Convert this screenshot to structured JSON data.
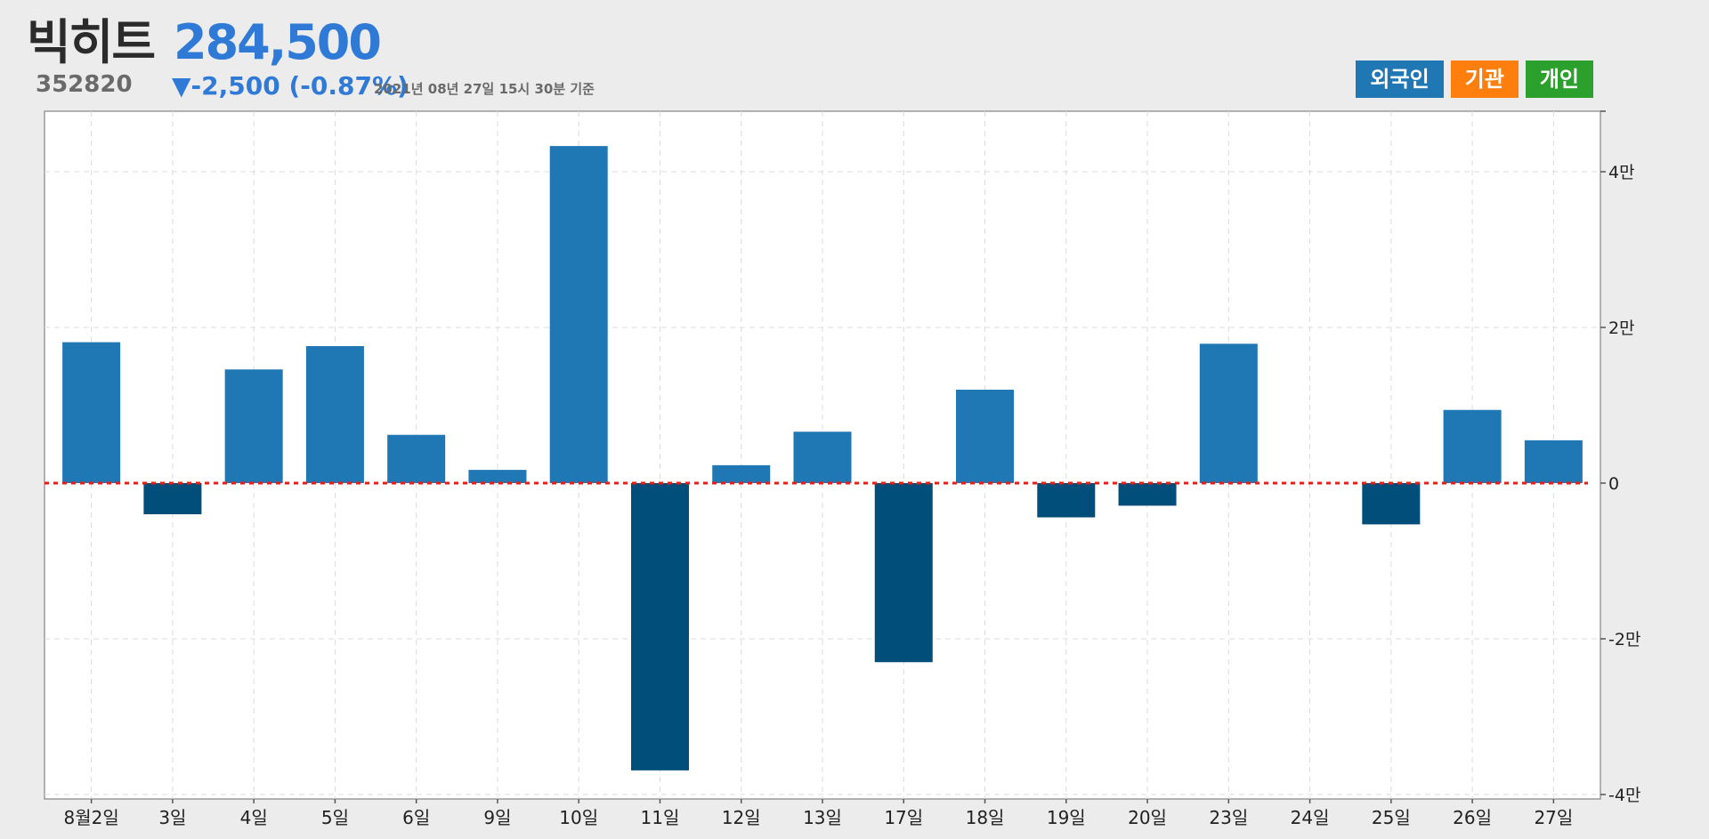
{
  "header": {
    "name": "빅히트",
    "code": "352820",
    "price": "284,500",
    "change": "▼-2,500 (-0.87%)",
    "timestamp": "2021년 08년 27일 15시 30분 기준"
  },
  "tabs": [
    {
      "label": "외국인",
      "color": "#1f77b4"
    },
    {
      "label": "기관",
      "color": "#ff7f0e"
    },
    {
      "label": "개인",
      "color": "#2ca02c"
    }
  ],
  "chart_data": {
    "type": "bar",
    "categories": [
      "8월2일",
      "3일",
      "4일",
      "5일",
      "6일",
      "9일",
      "10일",
      "11일",
      "12일",
      "13일",
      "17일",
      "18일",
      "19일",
      "20일",
      "23일",
      "24일",
      "25일",
      "26일",
      "27일"
    ],
    "values": [
      18100,
      -4000,
      14600,
      17600,
      6200,
      1700,
      43300,
      -36900,
      2300,
      6600,
      -23000,
      12000,
      -4400,
      -2900,
      17900,
      0,
      -5300,
      9400,
      5500
    ],
    "ylim": [
      -40000,
      40000
    ],
    "yticks": [
      {
        "value": 40000,
        "label": "4만"
      },
      {
        "value": 20000,
        "label": "2만"
      },
      {
        "value": 0,
        "label": "0"
      },
      {
        "value": -20000,
        "label": "-2만"
      },
      {
        "value": -40000,
        "label": "-4만"
      }
    ],
    "colors": {
      "positive": "#1f77b4",
      "negative": "#004e79",
      "zero_line": "#e0201b"
    },
    "grid": true
  }
}
